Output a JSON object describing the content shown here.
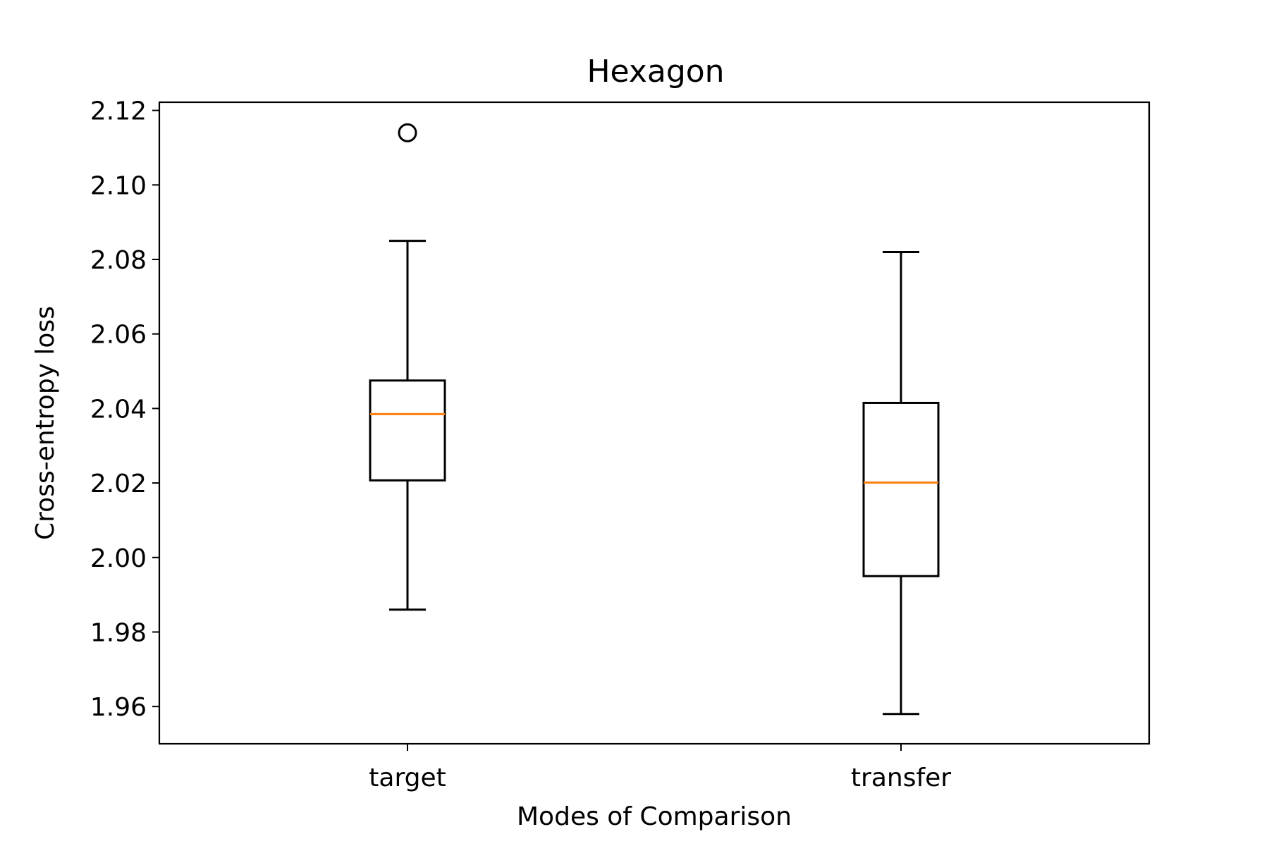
{
  "chart_data": {
    "type": "box",
    "title": "Hexagon",
    "xlabel": "Modes of Comparison",
    "ylabel": "Cross-entropy loss",
    "ylim": [
      1.95,
      2.1222
    ],
    "yticks": [
      "1.96",
      "1.98",
      "2.00",
      "2.02",
      "2.04",
      "2.06",
      "2.08",
      "2.10",
      "2.12"
    ],
    "categories": [
      "target",
      "transfer"
    ],
    "boxes": [
      {
        "label": "target",
        "whisker_low": 1.986,
        "q1": 2.0207,
        "median": 2.0385,
        "q3": 2.0475,
        "whisker_high": 2.085,
        "outliers": [
          2.114
        ]
      },
      {
        "label": "transfer",
        "whisker_low": 1.958,
        "q1": 1.995,
        "median": 2.0201,
        "q3": 2.0415,
        "whisker_high": 2.082,
        "outliers": []
      }
    ],
    "grid": false,
    "colors": {
      "box": "#000000",
      "median": "#ff7f0e"
    }
  }
}
